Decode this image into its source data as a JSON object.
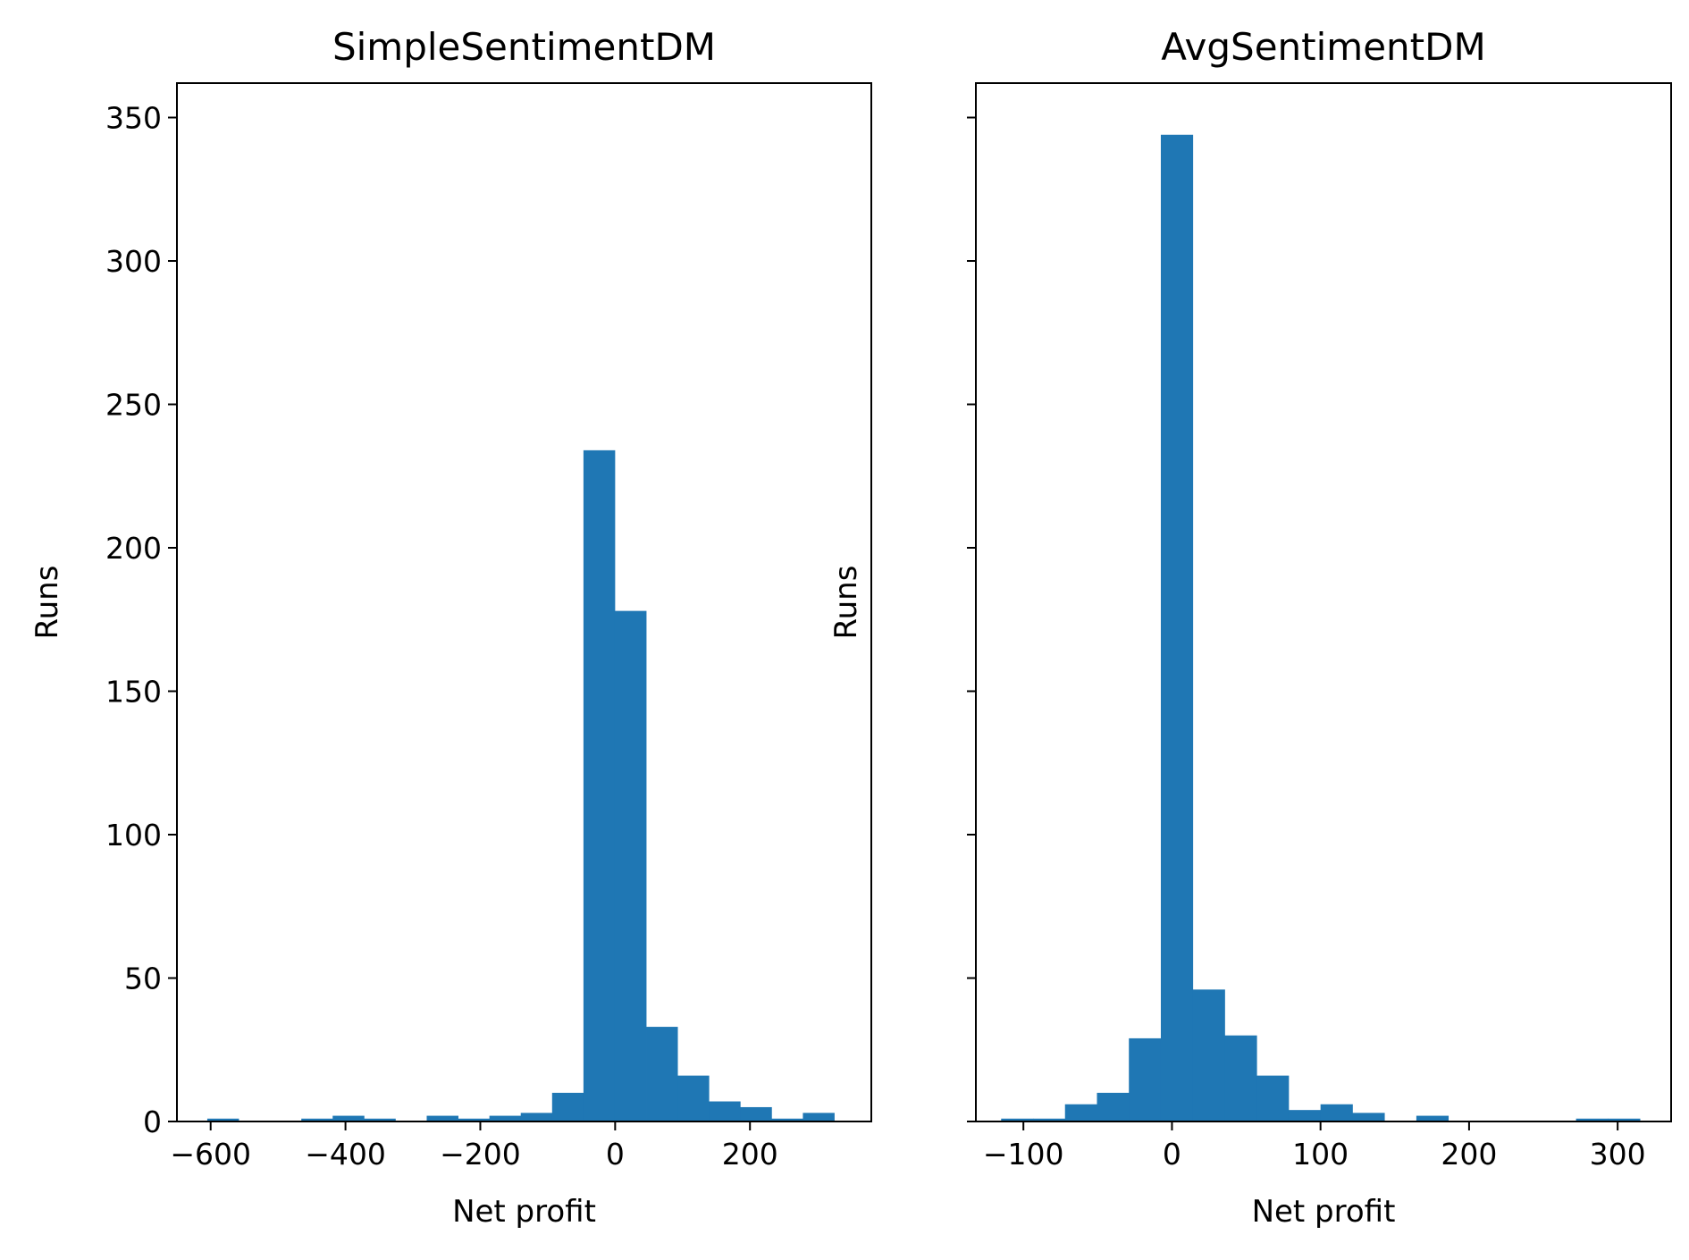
{
  "chart_data": [
    {
      "type": "bar",
      "title": "SimpleSentimentDM",
      "xlabel": "Net profit",
      "ylabel": "Runs",
      "xlim": [
        -650,
        380
      ],
      "ylim": [
        0,
        362
      ],
      "xticks": [
        -600,
        -400,
        -200,
        0,
        200
      ],
      "xtick_labels": [
        "−600",
        "−400",
        "−200",
        "0",
        "200"
      ],
      "yticks": [
        0,
        50,
        100,
        150,
        200,
        250,
        300,
        350
      ],
      "ytick_labels": [
        "0",
        "50",
        "100",
        "150",
        "200",
        "250",
        "300",
        "350"
      ],
      "bin_edges": [
        -605,
        -558.5,
        -512,
        -465.5,
        -419,
        -372.5,
        -326,
        -279.5,
        -233,
        -186.5,
        -140,
        -93.5,
        -47,
        -0.5,
        46,
        92.5,
        139,
        185.5,
        232,
        278.5,
        325
      ],
      "counts": [
        1,
        0,
        0,
        1,
        2,
        1,
        0,
        2,
        1,
        2,
        3,
        10,
        234,
        178,
        33,
        16,
        7,
        5,
        1,
        3
      ],
      "color": "#1f77b4"
    },
    {
      "type": "bar",
      "title": "AvgSentimentDM",
      "xlabel": "Net profit",
      "ylabel": "Runs",
      "xlim": [
        -132,
        336
      ],
      "ylim": [
        0,
        362
      ],
      "xticks": [
        -100,
        0,
        100,
        200,
        300
      ],
      "xtick_labels": [
        "−100",
        "0",
        "100",
        "200",
        "300"
      ],
      "yticks": [
        0,
        50,
        100,
        150,
        200,
        250,
        300,
        350
      ],
      "ytick_labels": [],
      "bin_edges": [
        -115,
        -93.5,
        -72,
        -50.5,
        -29,
        -7.5,
        14,
        35.5,
        57,
        78.5,
        100,
        121.5,
        143,
        164.5,
        186,
        207.5,
        229,
        250.5,
        272,
        293.5,
        315
      ],
      "counts": [
        1,
        1,
        6,
        10,
        29,
        344,
        46,
        30,
        16,
        4,
        6,
        3,
        0,
        2,
        0,
        0,
        0,
        0,
        1,
        1
      ],
      "color": "#1f77b4"
    }
  ]
}
